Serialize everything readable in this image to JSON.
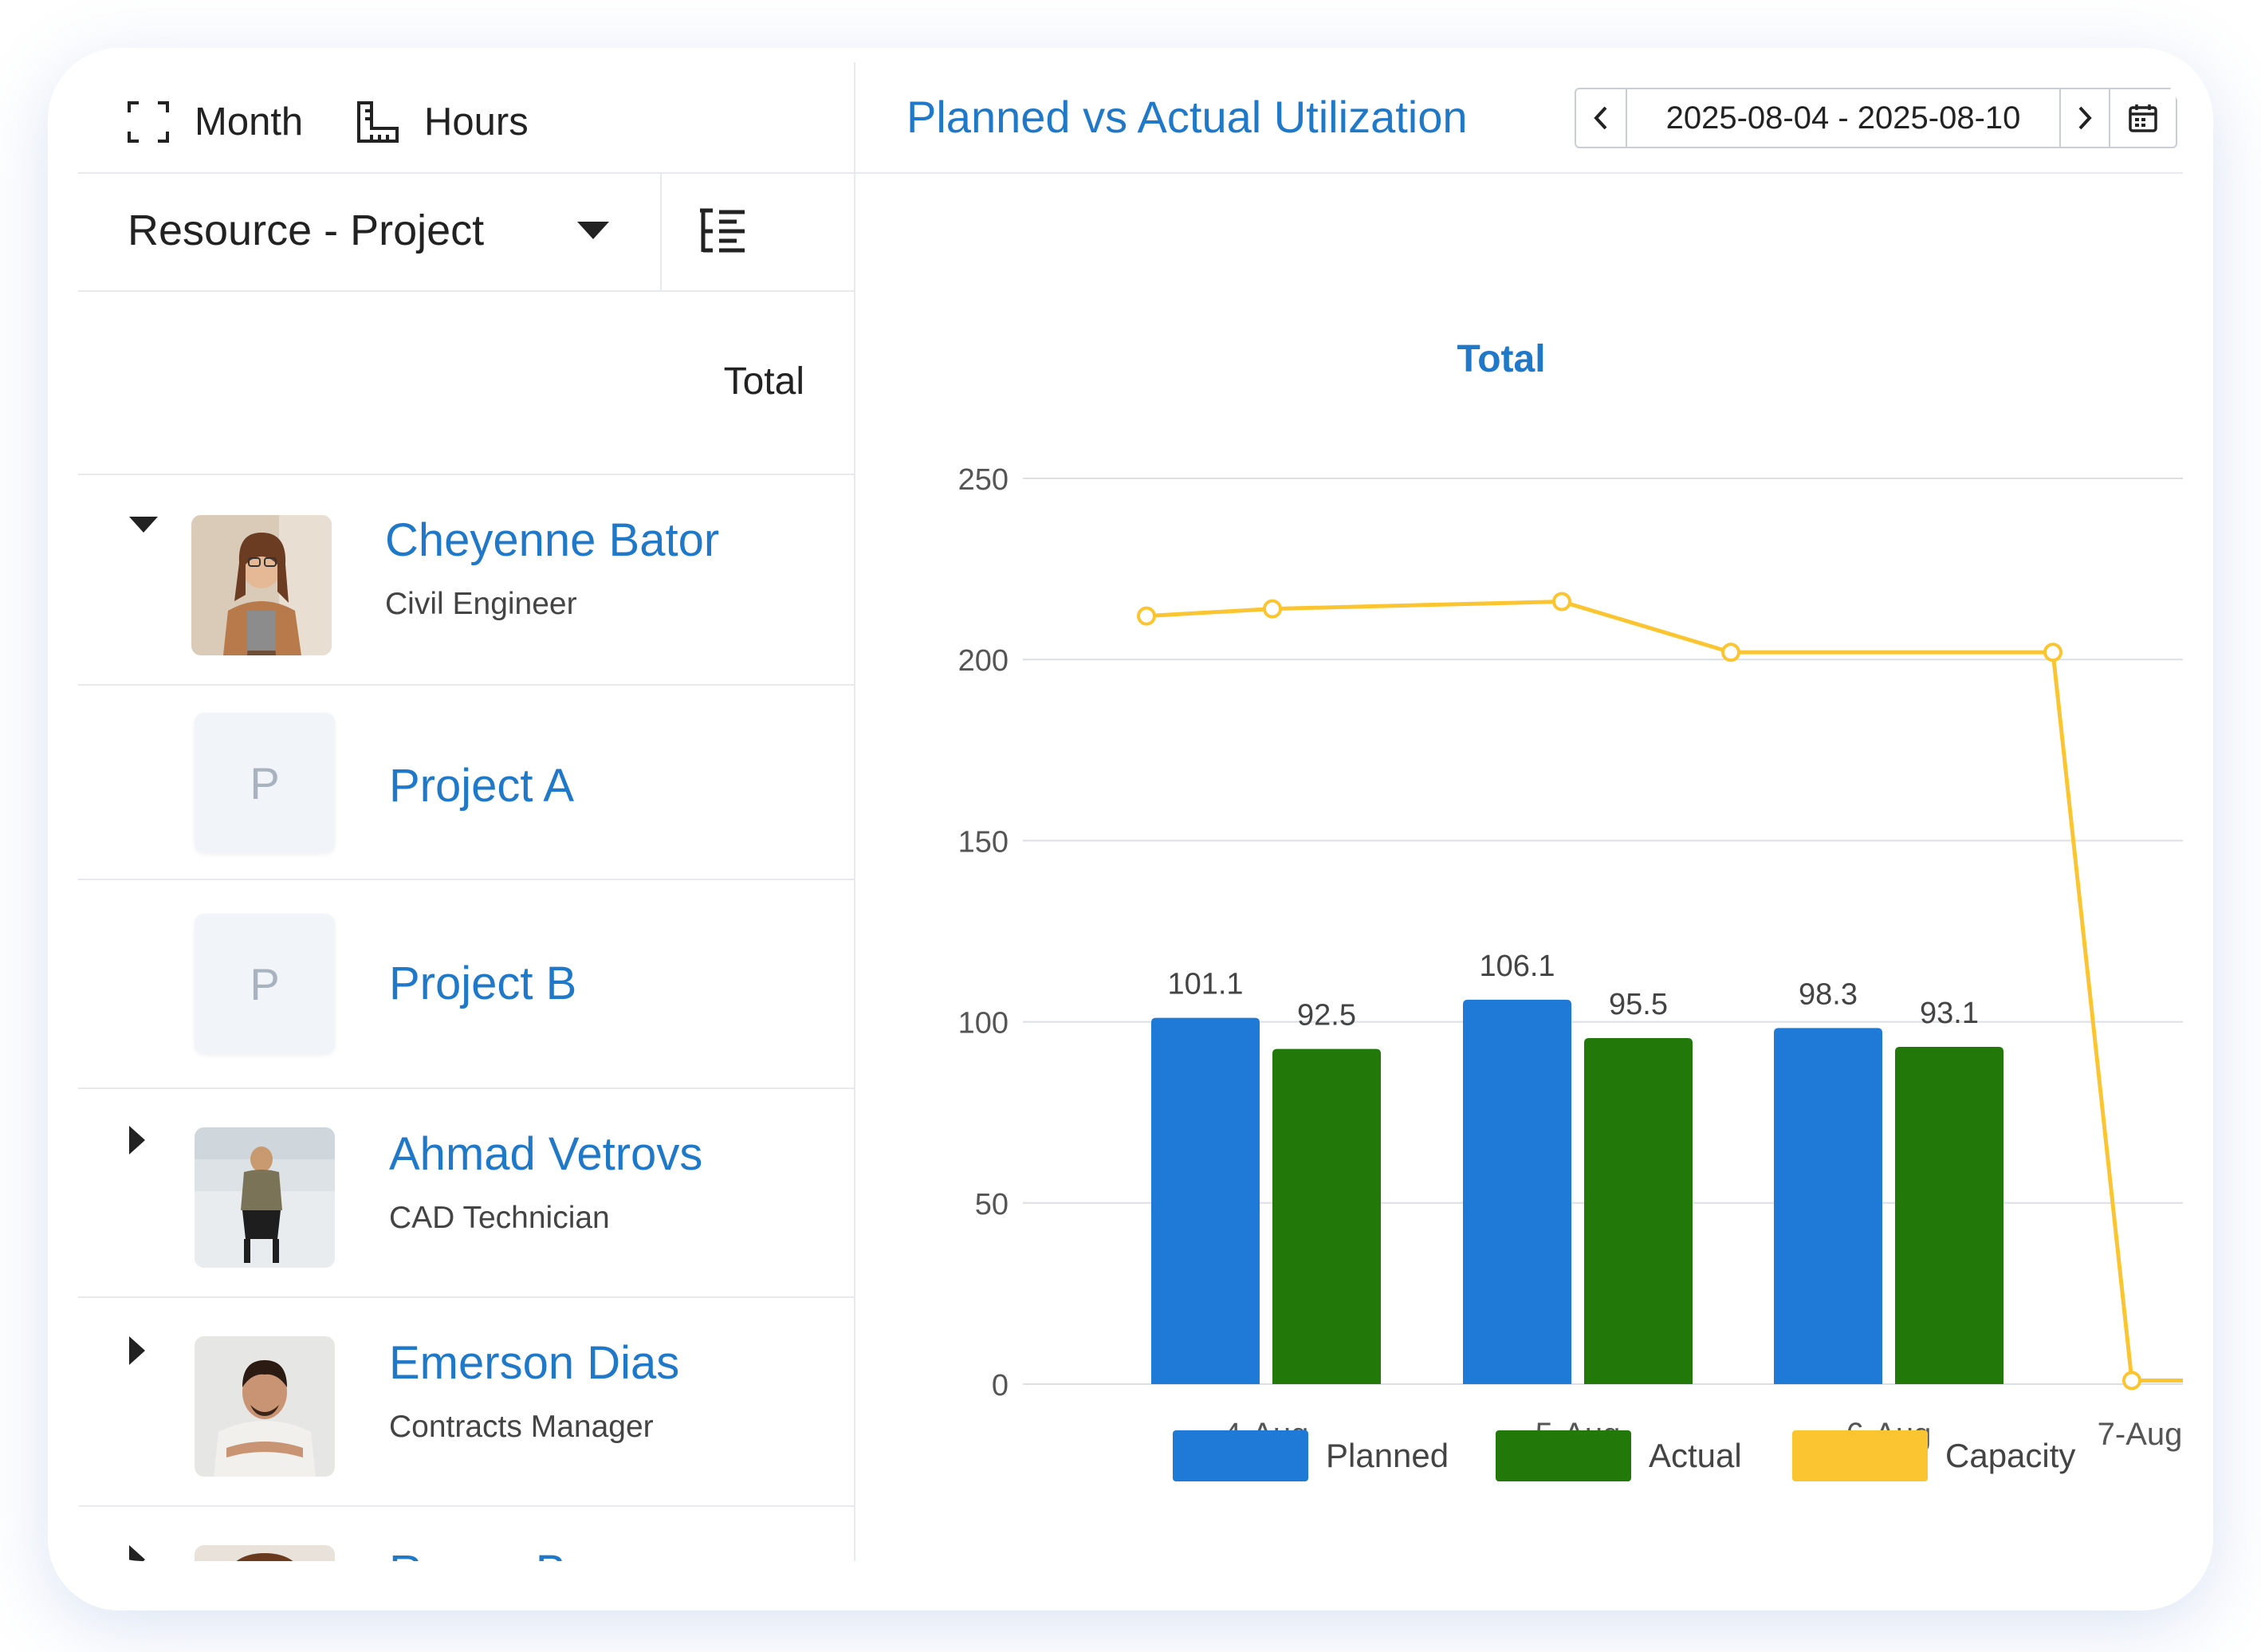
{
  "toolbar": {
    "month_label": "Month",
    "hours_label": "Hours"
  },
  "grouping": {
    "selected": "Resource - Project"
  },
  "table": {
    "column_header": "Total"
  },
  "resources": [
    {
      "name": "Cheyenne Bator",
      "role": "Civil Engineer",
      "expanded": true
    },
    {
      "name": "Project A",
      "placeholder": "P"
    },
    {
      "name": "Project B",
      "placeholder": "P"
    },
    {
      "name": "Ahmad Vetrovs",
      "role": "CAD Technician",
      "expanded": false
    },
    {
      "name": "Emerson Dias",
      "role": "Contracts Manager",
      "expanded": false
    },
    {
      "name": "Rayna Bergson",
      "expanded": false
    }
  ],
  "panel": {
    "title": "Planned vs Actual Utilization",
    "date_range": "2025-08-04 - 2025-08-10"
  },
  "chart_data": {
    "type": "bar",
    "title": "Total",
    "categories": [
      "4-Aug",
      "5-Aug",
      "6-Aug",
      "7-Aug"
    ],
    "series": [
      {
        "name": "Planned",
        "type": "bar",
        "color": "#1e7ad6",
        "values": [
          101.1,
          106.1,
          98.3,
          null
        ]
      },
      {
        "name": "Actual",
        "type": "bar",
        "color": "#22790a",
        "values": [
          92.5,
          95.5,
          93.1,
          null
        ]
      },
      {
        "name": "Capacity",
        "type": "line",
        "color": "#fbc531",
        "x": [
          "4-Aug",
          "4-Aug",
          "5-Aug",
          "5-Aug",
          "6-Aug",
          "7-Aug",
          "7-Aug"
        ],
        "values": [
          212,
          214,
          216,
          202,
          202,
          1,
          1
        ]
      }
    ],
    "ylim": [
      0,
      250
    ],
    "yticks": [
      0,
      50,
      100,
      150,
      200,
      250
    ],
    "legend": "bottom",
    "grid": true
  }
}
